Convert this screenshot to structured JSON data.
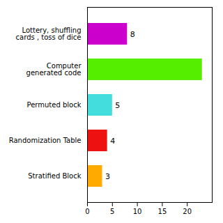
{
  "chart_data": {
    "type": "bar",
    "orientation": "horizontal",
    "categories": [
      "Lottery, shuffling\ncards , toss of dice",
      "Computer\ngenerated code",
      "Permuted block",
      "Randomization Table",
      "Stratified Block"
    ],
    "values": [
      8,
      23,
      5,
      4,
      3
    ],
    "colors": [
      "#cc00cc",
      "#55ee00",
      "#44dddd",
      "#ee1111",
      "#ffaa00"
    ],
    "data_labels": true,
    "value_labels": [
      "8",
      null,
      "5",
      "4",
      "3"
    ],
    "xlim": [
      0,
      25
    ],
    "xticks": [
      0,
      5,
      10,
      15,
      20
    ],
    "grid": false
  }
}
